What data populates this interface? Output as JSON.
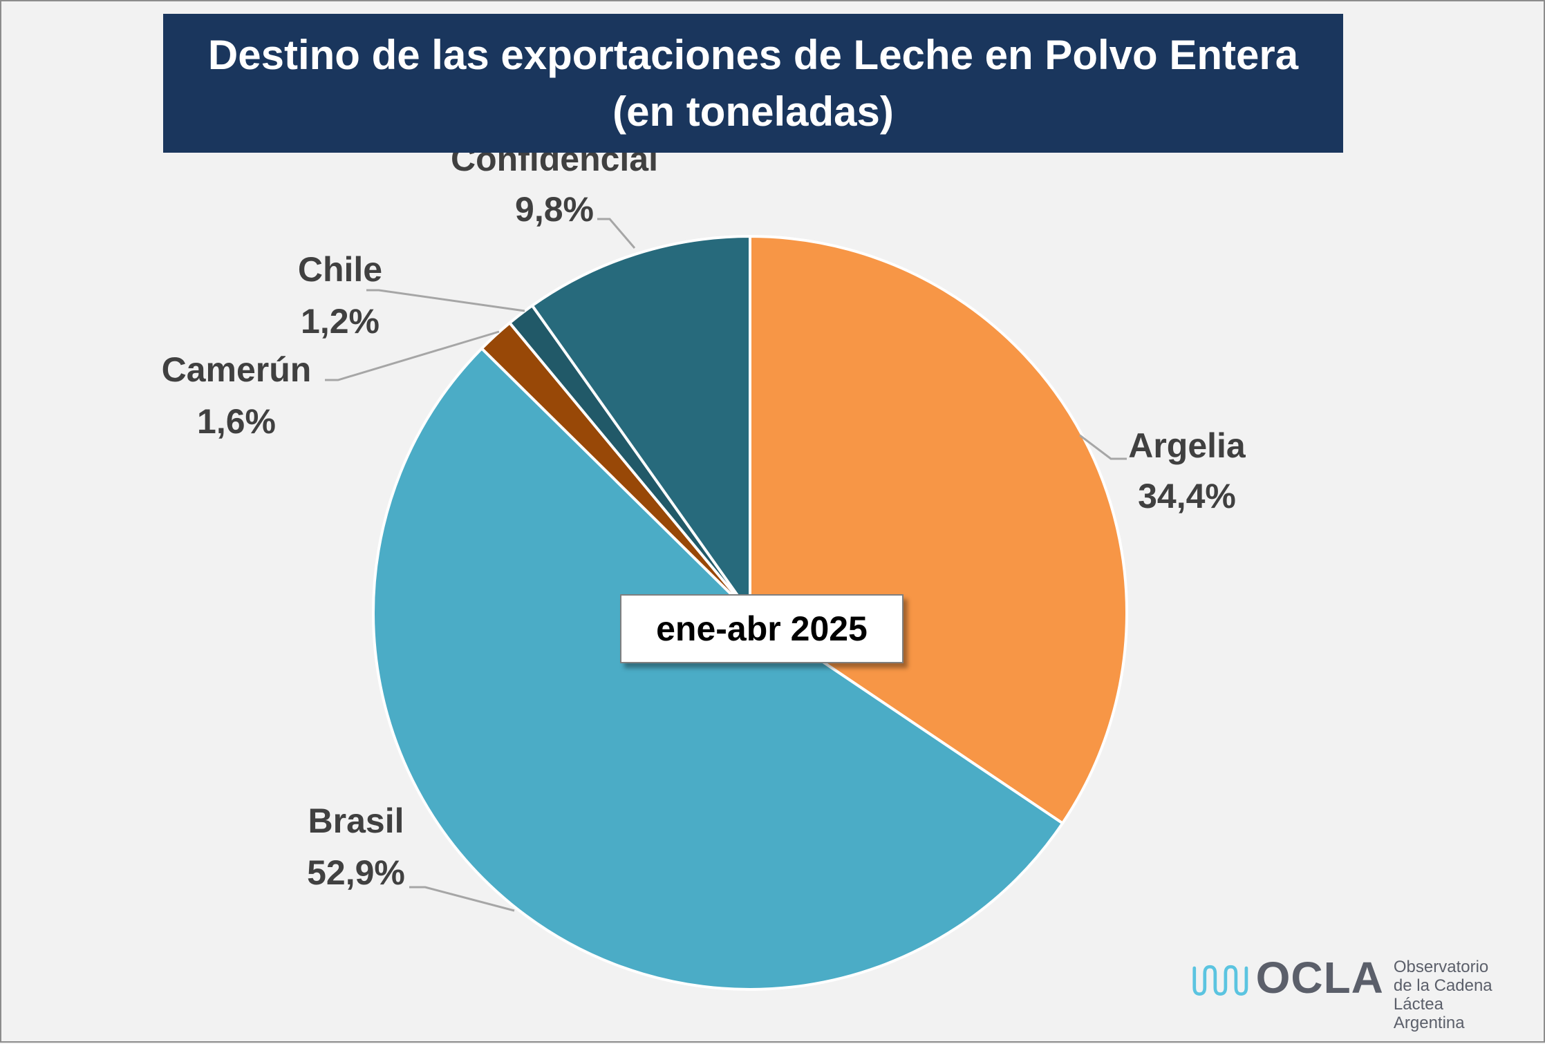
{
  "title": {
    "line1": "Destino de las exportaciones de Leche en Polvo Entera",
    "line2": "(en toneladas)"
  },
  "period_label": "ene-abr 2025",
  "logo": {
    "acronym": "OCLA",
    "line1": "Observatorio",
    "line2": "de la Cadena Láctea",
    "line3": "Argentina",
    "icon": "wave-icon",
    "color": "#5bc4e0"
  },
  "chart_data": {
    "type": "pie",
    "title": "Destino de las exportaciones de Leche en Polvo Entera (en toneladas)",
    "start_angle_deg": 0,
    "direction": "clockwise",
    "slices": [
      {
        "name": "Argelia",
        "value": 34.4,
        "label": "34,4%",
        "color": "#f79646"
      },
      {
        "name": "Brasil",
        "value": 52.9,
        "label": "52,9%",
        "color": "#4bacc6"
      },
      {
        "name": "Camerún",
        "value": 1.6,
        "label": "1,6%",
        "color": "#984807"
      },
      {
        "name": "Chile",
        "value": 1.2,
        "label": "1,2%",
        "color": "#215968"
      },
      {
        "name": "Confidencial",
        "value": 9.8,
        "label": "9,8%",
        "color": "#276a7c"
      }
    ],
    "label_color": "#404040",
    "slice_border": "#ffffff"
  }
}
